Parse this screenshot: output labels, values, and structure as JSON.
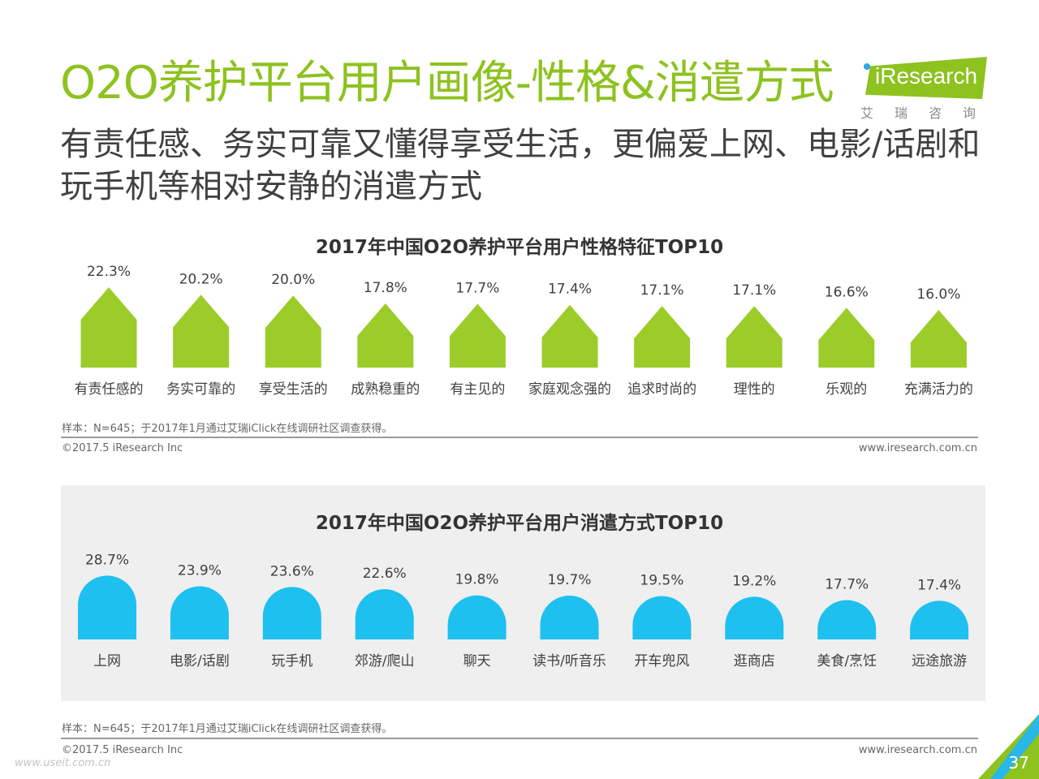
{
  "page": {
    "title": "O2O养护平台用户画像-性格&消遣方式",
    "subtitle": "有责任感、务实可靠又懂得享受生活，更偏爱上网、电影/话剧和玩手机等相对安静的消遣方式",
    "logo": {
      "brand": "iResearch",
      "cn": "艾瑞咨询"
    },
    "watermark": "www.useit.com.cn",
    "page_number": "37"
  },
  "colors": {
    "accent_green": "#8dc21f",
    "accent_blue": "#1ec0ef"
  },
  "chart_data": [
    {
      "type": "bar",
      "title": "2017年中国O2O养护平台用户性格特征TOP10",
      "categories": [
        "有责任感的",
        "务实可靠的",
        "享受生活的",
        "成熟稳重的",
        "有主见的",
        "家庭观念强的",
        "追求时尚的",
        "理性的",
        "乐观的",
        "充满活力的"
      ],
      "values": [
        22.3,
        20.2,
        20.0,
        17.8,
        17.7,
        17.4,
        17.1,
        17.1,
        16.6,
        16.0
      ],
      "labels": [
        "22.3%",
        "20.2%",
        "20.0%",
        "17.8%",
        "17.7%",
        "17.4%",
        "17.1%",
        "17.1%",
        "16.6%",
        "16.0%"
      ],
      "unit": "%",
      "bar_shape": "house",
      "color": "#9ccc29",
      "grid": false
    },
    {
      "type": "bar",
      "title": "2017年中国O2O养护平台用户消遣方式TOP10",
      "categories": [
        "上网",
        "电影/话剧",
        "玩手机",
        "郊游/爬山",
        "聊天",
        "读书/听音乐",
        "开车兜风",
        "逛商店",
        "美食/烹饪",
        "远途旅游"
      ],
      "values": [
        28.7,
        23.9,
        23.6,
        22.6,
        19.8,
        19.7,
        19.5,
        19.2,
        17.7,
        17.4
      ],
      "labels": [
        "28.7%",
        "23.9%",
        "23.6%",
        "22.6%",
        "19.8%",
        "19.7%",
        "19.5%",
        "19.2%",
        "17.7%",
        "17.4%"
      ],
      "unit": "%",
      "bar_shape": "arch",
      "color": "#1ec0ef",
      "grid": false
    }
  ],
  "footer": [
    {
      "note": "样本：N=645；于2017年1月通过艾瑞iClick在线调研社区调查获得。",
      "copyright": "©2017.5 iResearch Inc",
      "url": "www.iresearch.com.cn"
    },
    {
      "note": "样本：N=645；于2017年1月通过艾瑞iClick在线调研社区调查获得。",
      "copyright": "©2017.5 iResearch Inc",
      "url": "www.iresearch.com.cn"
    }
  ]
}
